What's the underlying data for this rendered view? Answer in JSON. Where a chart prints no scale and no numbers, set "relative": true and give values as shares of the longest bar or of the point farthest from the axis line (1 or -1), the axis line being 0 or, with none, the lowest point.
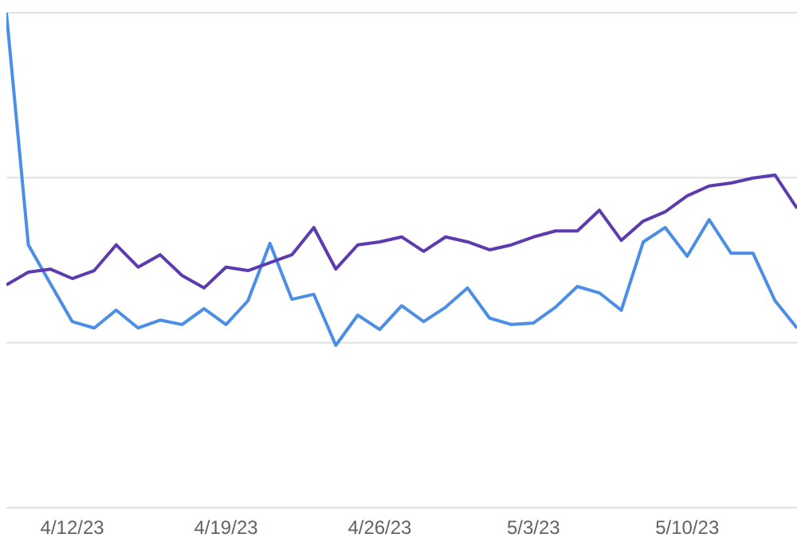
{
  "chart_data": {
    "type": "line",
    "relative": true,
    "ref_lines": [
      {
        "axis": "y",
        "value": 0.333,
        "color": "#e0e0e0"
      },
      {
        "axis": "y",
        "value": 0.667,
        "color": "#e0e0e0"
      },
      {
        "axis": "y",
        "value": 1,
        "color": "#e0e0e0"
      }
    ],
    "marker": "none",
    "line_style": "solid",
    "x": [
      "--04-09",
      "--04-10",
      "--04-11",
      "--04-12",
      "--04-13",
      "--04-14",
      "--04-15",
      "--04-16",
      "--04-17",
      "--04-18",
      "--04-19",
      "--04-20",
      "--04-21",
      "--04-22",
      "--04-23",
      "--04-24",
      "--04-25",
      "--04-26",
      "--04-27",
      "--04-28",
      "--04-29",
      "--04-30",
      "--05-01",
      "--05-02",
      "--05-03",
      "--05-04",
      "--05-05",
      "--05-06",
      "--05-07",
      "--05-08",
      "--05-09",
      "--05-10",
      "--05-11",
      "--05-12",
      "--05-13",
      "--05-14",
      "--05-15"
    ],
    "xlim": [
      "--04-09",
      "--05-15"
    ],
    "xticks": [
      {
        "value": "--04-12",
        "label": "4/12/23"
      },
      {
        "value": "--04-19",
        "label": "4/19/23"
      },
      {
        "value": "--04-26",
        "label": "4/26/23"
      },
      {
        "value": "--05-03",
        "label": "5/3/23"
      },
      {
        "value": "--05-10",
        "label": "5/10/23"
      }
    ],
    "series": [
      {
        "color": "#4a8ee6",
        "values": [
          1.0,
          0.531,
          0.453,
          0.376,
          0.363,
          0.399,
          0.363,
          0.379,
          0.37,
          0.402,
          0.37,
          0.418,
          0.534,
          0.421,
          0.431,
          0.328,
          0.389,
          0.36,
          0.408,
          0.376,
          0.405,
          0.444,
          0.383,
          0.37,
          0.373,
          0.405,
          0.447,
          0.434,
          0.399,
          0.537,
          0.566,
          0.508,
          0.582,
          0.514,
          0.514,
          0.418,
          0.363
        ]
      },
      {
        "color": "#5c3bb0",
        "values": [
          0.45,
          0.476,
          0.482,
          0.463,
          0.479,
          0.531,
          0.486,
          0.511,
          0.469,
          0.444,
          0.486,
          0.479,
          0.495,
          0.511,
          0.566,
          0.482,
          0.531,
          0.537,
          0.547,
          0.518,
          0.547,
          0.537,
          0.521,
          0.531,
          0.547,
          0.559,
          0.559,
          0.601,
          0.54,
          0.579,
          0.598,
          0.63,
          0.65,
          0.656,
          0.666,
          0.672,
          0.605
        ]
      }
    ]
  }
}
